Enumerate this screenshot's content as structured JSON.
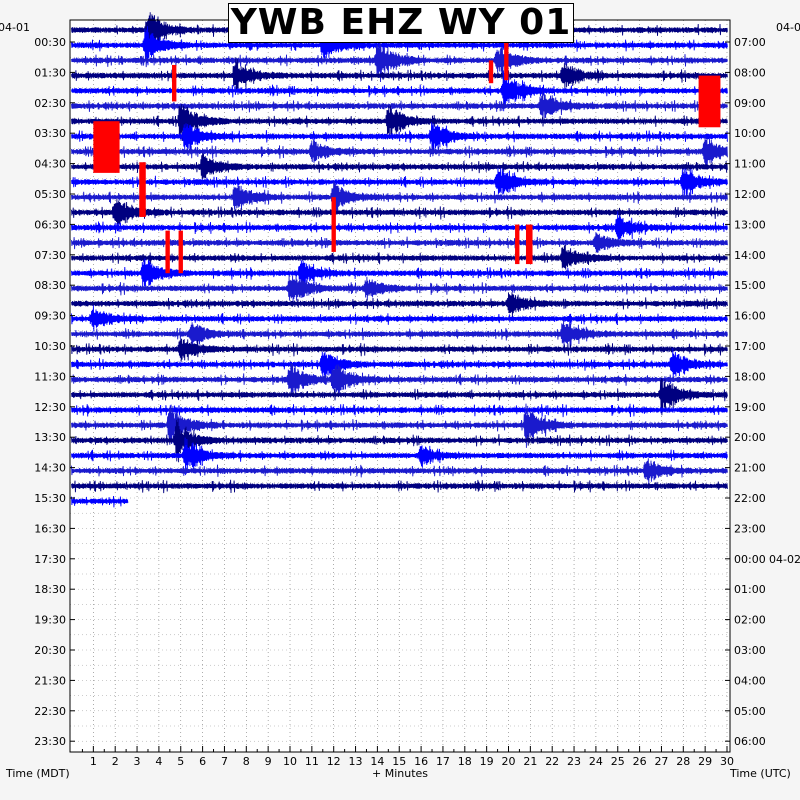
{
  "chart_data": {
    "type": "helicorder",
    "title": "YWB EHZ WY 01",
    "date_left": "04-01",
    "date_right_top": "04-0",
    "date_right_mid": "04-02",
    "xlabel": "+ Minutes",
    "left_axis_title": "Time (MDT)",
    "right_axis_title": "Time (UTC)",
    "x_ticks": [
      1,
      2,
      3,
      4,
      5,
      6,
      7,
      8,
      9,
      10,
      11,
      12,
      13,
      14,
      15,
      16,
      17,
      18,
      19,
      20,
      21,
      22,
      23,
      24,
      25,
      26,
      27,
      28,
      29,
      30
    ],
    "xlim": [
      0,
      30
    ],
    "left_labels": [
      "00:30",
      "01:30",
      "02:30",
      "03:30",
      "04:30",
      "05:30",
      "06:30",
      "07:30",
      "08:30",
      "09:30",
      "10:30",
      "11:30",
      "12:30",
      "13:30",
      "14:30",
      "15:30",
      "16:30",
      "17:30",
      "18:30",
      "19:30",
      "20:30",
      "21:30",
      "22:30",
      "23:30"
    ],
    "right_labels": [
      "07:00",
      "08:00",
      "09:00",
      "10:00",
      "11:00",
      "12:00",
      "13:00",
      "14:00",
      "15:00",
      "16:00",
      "17:00",
      "18:00",
      "19:00",
      "20:00",
      "21:00",
      "22:00",
      "23:00",
      "00:00",
      "01:00",
      "02:00",
      "03:00",
      "04:00",
      "05:00",
      "06:00"
    ],
    "row_interval_minutes": 30,
    "trace_rows": 32,
    "trace_colors": [
      "#000080",
      "#0000ff",
      "#1a1acd"
    ],
    "clip_color": "#ff0000",
    "last_row_end_minute": 2.6,
    "events": [
      {
        "row": 0,
        "minute": 3.5,
        "amp": 2.0,
        "color": 1
      },
      {
        "row": 1,
        "minute": 3.4,
        "amp": 1.5,
        "color": 0
      },
      {
        "row": 1,
        "minute": 11.5,
        "amp": 1.4,
        "color": 1
      },
      {
        "row": 2,
        "minute": 14.0,
        "amp": 2.0,
        "color": 0
      },
      {
        "row": 2,
        "minute": 19.5,
        "amp": 1.5,
        "color": 1
      },
      {
        "row": 3,
        "minute": 7.5,
        "amp": 1.5,
        "color": 1
      },
      {
        "row": 3,
        "minute": 22.5,
        "amp": 1.4,
        "color": 1
      },
      {
        "row": 4,
        "minute": 19.8,
        "amp": 2.0,
        "color": 1
      },
      {
        "row": 5,
        "minute": 21.5,
        "amp": 1.5,
        "color": 0
      },
      {
        "row": 6,
        "minute": 5.0,
        "amp": 2.0,
        "color": 0
      },
      {
        "row": 6,
        "minute": 14.5,
        "amp": 1.6,
        "color": 1
      },
      {
        "row": 7,
        "minute": 5.2,
        "amp": 1.5,
        "color": 1
      },
      {
        "row": 7,
        "minute": 16.5,
        "amp": 1.6,
        "color": 1
      },
      {
        "row": 8,
        "minute": 11.0,
        "amp": 1.2,
        "color": 0
      },
      {
        "row": 8,
        "minute": 29.0,
        "amp": 1.5,
        "color": 1
      },
      {
        "row": 9,
        "minute": 6.0,
        "amp": 1.2,
        "color": 1
      },
      {
        "row": 10,
        "minute": 19.5,
        "amp": 1.5,
        "color": 1
      },
      {
        "row": 10,
        "minute": 28.0,
        "amp": 1.5,
        "color": 1
      },
      {
        "row": 11,
        "minute": 7.5,
        "amp": 1.6,
        "color": 1
      },
      {
        "row": 11,
        "minute": 12.0,
        "amp": 1.5,
        "color": 1
      },
      {
        "row": 12,
        "minute": 2.0,
        "amp": 1.6,
        "color": 0
      },
      {
        "row": 13,
        "minute": 25.0,
        "amp": 1.2,
        "color": 1
      },
      {
        "row": 14,
        "minute": 24.0,
        "amp": 1.0,
        "color": 1
      },
      {
        "row": 15,
        "minute": 22.5,
        "amp": 1.2,
        "color": 0
      },
      {
        "row": 16,
        "minute": 3.3,
        "amp": 1.6,
        "color": 1
      },
      {
        "row": 16,
        "minute": 10.5,
        "amp": 1.2,
        "color": 0
      },
      {
        "row": 17,
        "minute": 10.0,
        "amp": 1.6,
        "color": 1
      },
      {
        "row": 17,
        "minute": 13.5,
        "amp": 1.0,
        "color": 1
      },
      {
        "row": 18,
        "minute": 20.0,
        "amp": 1.2,
        "color": 1
      },
      {
        "row": 19,
        "minute": 1.0,
        "amp": 1.2,
        "color": 0
      },
      {
        "row": 20,
        "minute": 5.5,
        "amp": 1.2,
        "color": 0
      },
      {
        "row": 20,
        "minute": 22.5,
        "amp": 1.6,
        "color": 0
      },
      {
        "row": 21,
        "minute": 5.0,
        "amp": 1.2,
        "color": 1
      },
      {
        "row": 22,
        "minute": 11.5,
        "amp": 1.4,
        "color": 1
      },
      {
        "row": 22,
        "minute": 27.5,
        "amp": 1.4,
        "color": 1
      },
      {
        "row": 23,
        "minute": 10.0,
        "amp": 1.6,
        "color": 0
      },
      {
        "row": 23,
        "minute": 12.0,
        "amp": 1.8,
        "color": 0
      },
      {
        "row": 24,
        "minute": 27.0,
        "amp": 1.8,
        "color": 0
      },
      {
        "row": 26,
        "minute": 4.5,
        "amp": 2.0,
        "color": 1
      },
      {
        "row": 26,
        "minute": 20.8,
        "amp": 2.0,
        "color": 1
      },
      {
        "row": 27,
        "minute": 4.8,
        "amp": 1.8,
        "color": 1
      },
      {
        "row": 28,
        "minute": 5.2,
        "amp": 1.6,
        "color": 0
      },
      {
        "row": 28,
        "minute": 16.0,
        "amp": 1.0,
        "color": 1
      },
      {
        "row": 29,
        "minute": 26.3,
        "amp": 1.2,
        "color": 0
      }
    ],
    "clipped_segments": [
      {
        "minute_start": 1.0,
        "minute_end": 2.2,
        "row_top": 6.0,
        "row_bottom": 9.4
      },
      {
        "minute_start": 3.1,
        "minute_end": 3.4,
        "row_top": 8.7,
        "row_bottom": 12.3
      },
      {
        "minute_start": 19.8,
        "minute_end": 20.0,
        "row_top": 0.7,
        "row_bottom": 3.3
      },
      {
        "minute_start": 19.1,
        "minute_end": 19.3,
        "row_top": 2.0,
        "row_bottom": 3.5
      },
      {
        "minute_start": 28.7,
        "minute_end": 29.7,
        "row_top": 3.0,
        "row_bottom": 6.4
      },
      {
        "minute_start": 4.6,
        "minute_end": 4.8,
        "row_top": 2.3,
        "row_bottom": 4.7
      },
      {
        "minute_start": 4.3,
        "minute_end": 4.5,
        "row_top": 13.2,
        "row_bottom": 16.0
      },
      {
        "minute_start": 4.9,
        "minute_end": 5.1,
        "row_top": 13.2,
        "row_bottom": 16.0
      },
      {
        "minute_start": 11.9,
        "minute_end": 12.1,
        "row_top": 11.0,
        "row_bottom": 14.6
      },
      {
        "minute_start": 20.3,
        "minute_end": 20.5,
        "row_top": 12.8,
        "row_bottom": 15.4
      },
      {
        "minute_start": 20.8,
        "minute_end": 21.1,
        "row_top": 12.8,
        "row_bottom": 15.4
      }
    ]
  }
}
